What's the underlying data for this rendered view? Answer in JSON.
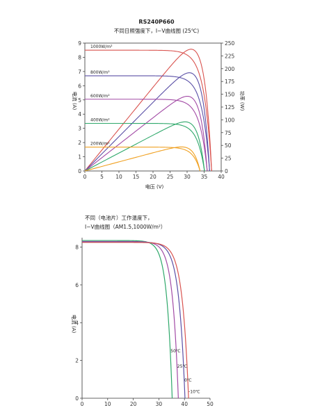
{
  "chart_data": [
    {
      "type": "line",
      "title": "RS240P660",
      "subtitle": "不同日照强度下，I−V曲线图 (25℃)",
      "xlabel": "电压 (V)",
      "ylabel": "电流 (A)",
      "y2label": "功率 (W)",
      "xlim": [
        0,
        40
      ],
      "ylim": [
        0,
        9
      ],
      "y2lim": [
        0,
        250
      ],
      "xticks": [
        "0",
        "5",
        "10",
        "15",
        "20",
        "25",
        "30",
        "35",
        "40"
      ],
      "yticks": [
        "0",
        "1",
        "2",
        "3",
        "4",
        "5",
        "6",
        "7",
        "8",
        "9"
      ],
      "y2ticks": [
        "0",
        "25",
        "50",
        "75",
        "100",
        "125",
        "150",
        "175",
        "200",
        "225",
        "250"
      ],
      "grid": false,
      "series": [
        {
          "name": "1000W/m²",
          "color": "#d9534f",
          "isc": 8.5,
          "voc": 37.2,
          "pmax": 238,
          "vmp": 30.5
        },
        {
          "name": "800W/m²",
          "color": "#5a4fa6",
          "isc": 6.7,
          "voc": 36.6,
          "pmax": 192,
          "vmp": 30.2
        },
        {
          "name": "600W/m²",
          "color": "#a24aa5",
          "isc": 5.05,
          "voc": 35.9,
          "pmax": 146,
          "vmp": 29.8
        },
        {
          "name": "400W/m²",
          "color": "#2ea86a",
          "isc": 3.35,
          "voc": 35.1,
          "pmax": 96,
          "vmp": 29.4
        },
        {
          "name": "200W/m²",
          "color": "#f0a020",
          "isc": 1.68,
          "voc": 33.8,
          "pmax": 47,
          "vmp": 28.8
        }
      ]
    },
    {
      "type": "line",
      "title": "不同（电池片）工作温度下，",
      "subtitle": "I−V曲线图（AM1.5,1000W/m²）",
      "xlabel": "",
      "ylabel": "电流 (A)",
      "xlim": [
        0,
        50
      ],
      "ylim": [
        0,
        8.5
      ],
      "xticks": [
        "0",
        "10",
        "20",
        "30",
        "40",
        "50"
      ],
      "yticks": [
        "0",
        "2",
        "4",
        "6",
        "8"
      ],
      "grid": false,
      "series": [
        {
          "name": "50℃",
          "color": "#2ea86a",
          "isc": 8.35,
          "voc": 35.2
        },
        {
          "name": "25℃",
          "color": "#a24aa5",
          "isc": 8.3,
          "voc": 37.6
        },
        {
          "name": "0℃",
          "color": "#5a4fa6",
          "isc": 8.27,
          "voc": 40.2
        },
        {
          "name": "-10℃",
          "color": "#d9534f",
          "isc": 8.25,
          "voc": 41.6
        }
      ]
    }
  ]
}
